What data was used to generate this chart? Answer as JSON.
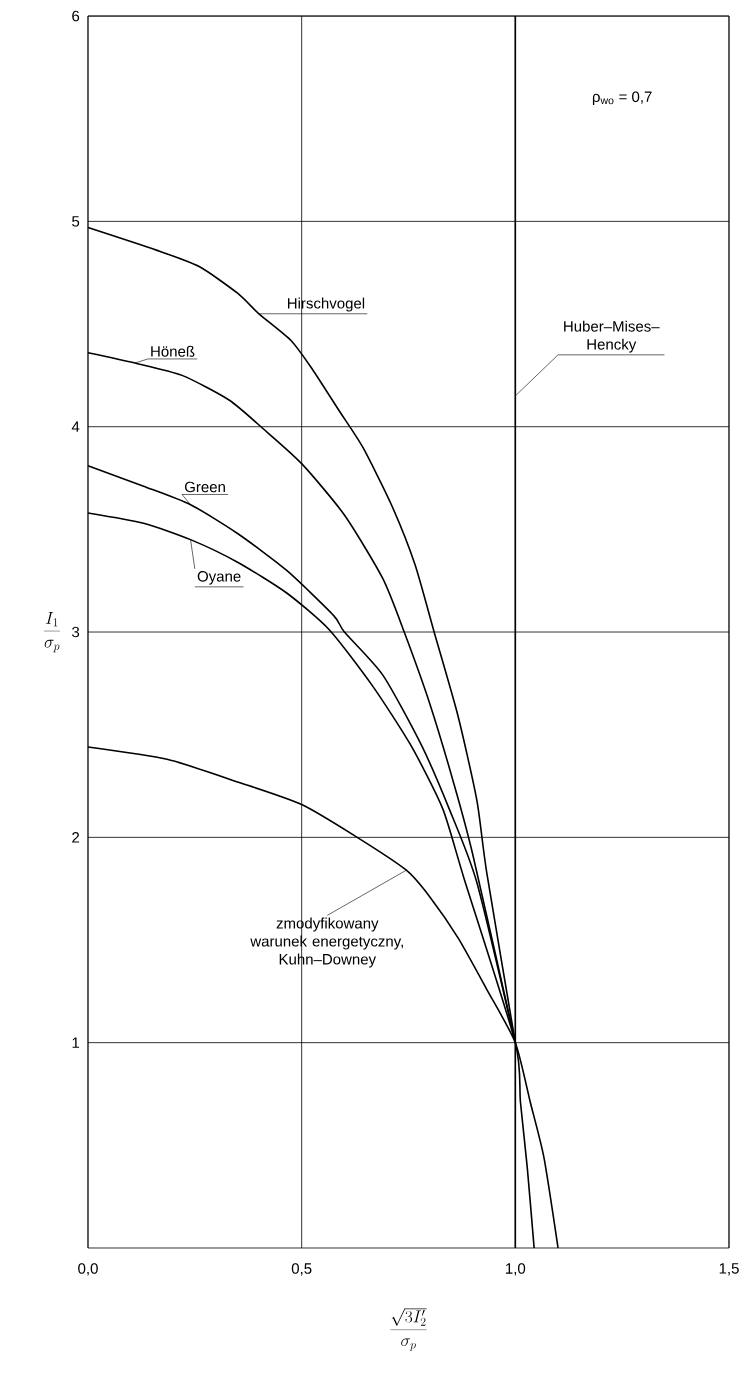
{
  "chart_data": {
    "type": "line",
    "xlabel": "\\frac{\\sqrt{3I_2'}}{\\sigma_p}",
    "ylabel": "\\frac{I_1}{\\sigma_p}",
    "annotations": [
      "ρ$_{wo}$ = 0,7"
    ],
    "xlim": [
      0,
      1.5
    ],
    "ylim": [
      0,
      6
    ],
    "xticks": [
      {
        "value": 0,
        "label": "0,0"
      },
      {
        "value": 0.5,
        "label": "0,5"
      },
      {
        "value": 1,
        "label": "1,0"
      },
      {
        "value": 1.5,
        "label": "1,5"
      }
    ],
    "yticks": [
      1,
      2,
      3,
      4,
      5,
      6
    ],
    "grid": true,
    "line_style": "solid",
    "series": [
      {
        "name": "Hirschvogel",
        "color": "#000000",
        "x": [
          0,
          0.16,
          0.26,
          0.35,
          0.4,
          0.475,
          0.525,
          0.587,
          0.643,
          0.71,
          0.765,
          0.81,
          0.866,
          0.91,
          0.933,
          1.0
        ],
        "values": [
          4.97,
          4.86,
          4.78,
          4.65,
          4.55,
          4.42,
          4.28,
          4.08,
          3.9,
          3.62,
          3.33,
          3.0,
          2.59,
          2.18,
          1.83,
          1.0
        ]
      },
      {
        "name": "Höneß",
        "color": "#000000",
        "x": [
          0,
          0.11,
          0.22,
          0.33,
          0.41,
          0.5,
          0.6,
          0.69,
          0.74,
          0.8,
          0.855,
          0.9,
          1.0
        ],
        "values": [
          4.36,
          4.31,
          4.25,
          4.13,
          3.99,
          3.82,
          3.57,
          3.26,
          3.0,
          2.65,
          2.27,
          1.92,
          1.0
        ]
      },
      {
        "name": "Green",
        "color": "#000000",
        "x": [
          0,
          0.13,
          0.24,
          0.35,
          0.465,
          0.575,
          0.6,
          0.69,
          0.78,
          0.845,
          0.91,
          1.0
        ],
        "values": [
          3.81,
          3.71,
          3.62,
          3.48,
          3.3,
          3.08,
          3.0,
          2.79,
          2.45,
          2.14,
          1.78,
          1.0
        ]
      },
      {
        "name": "Oyane",
        "color": "#000000",
        "x": [
          0,
          0.13,
          0.24,
          0.35,
          0.465,
          0.565,
          0.665,
          0.755,
          0.83,
          0.88,
          1.0,
          1.012,
          1.028,
          1.044
        ],
        "values": [
          3.58,
          3.53,
          3.45,
          3.34,
          3.19,
          3.01,
          2.74,
          2.45,
          2.14,
          1.8,
          1.0,
          0.71,
          0.39,
          0
        ]
      },
      {
        "name": "zmodyfikowany warunek energetyczny, Kuhn–Downey",
        "color": "#000000",
        "x": [
          0,
          0.185,
          0.35,
          0.5,
          0.63,
          0.745,
          0.8,
          0.866,
          0.933,
          1.0,
          1.035,
          1.067,
          1.1
        ],
        "values": [
          2.44,
          2.38,
          2.27,
          2.16,
          2.0,
          1.84,
          1.71,
          1.51,
          1.26,
          1.0,
          0.71,
          0.44,
          0
        ]
      },
      {
        "name": "Huber–Mises–Hencky",
        "color": "#000000",
        "x": [
          1,
          1
        ],
        "values": [
          0,
          6
        ]
      }
    ]
  }
}
